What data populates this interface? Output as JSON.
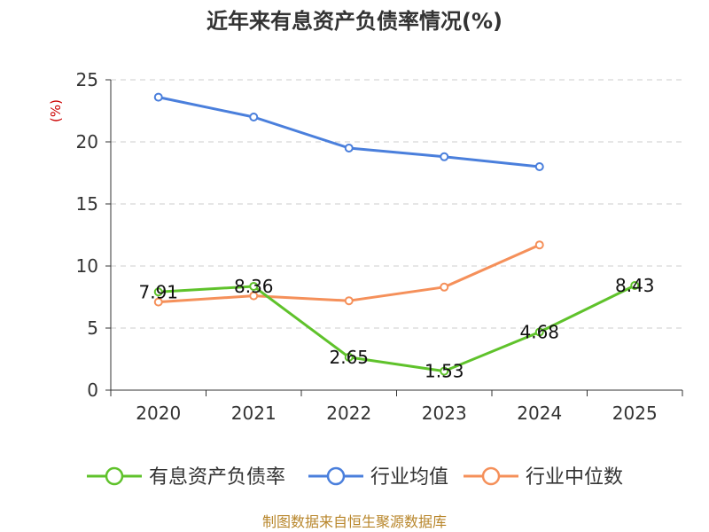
{
  "chart_data": {
    "type": "line",
    "title": "近年来有息资产负债率情况(%)",
    "ylabel": "(%)",
    "xlabel": "",
    "categories": [
      "2020",
      "2021",
      "2022",
      "2023",
      "2024",
      "2025"
    ],
    "ylim": [
      0,
      25
    ],
    "yticks": [
      0,
      5,
      10,
      15,
      20,
      25
    ],
    "grid": true,
    "legend_position": "bottom",
    "series": [
      {
        "name": "有息资产负债率",
        "color": "#5fc22b",
        "values": [
          7.91,
          8.36,
          2.65,
          1.53,
          4.68,
          8.43
        ],
        "labels": [
          "7.91",
          "8.36",
          "2.65",
          "1.53",
          "4.68",
          "8.43"
        ]
      },
      {
        "name": "行业均值",
        "color": "#4a7fdc",
        "values": [
          23.6,
          22.0,
          19.5,
          18.8,
          18.0,
          null
        ]
      },
      {
        "name": "行业中位数",
        "color": "#f5905a",
        "values": [
          7.1,
          7.6,
          7.2,
          8.3,
          11.7,
          null
        ]
      }
    ],
    "source": "制图数据来自恒生聚源数据库"
  }
}
